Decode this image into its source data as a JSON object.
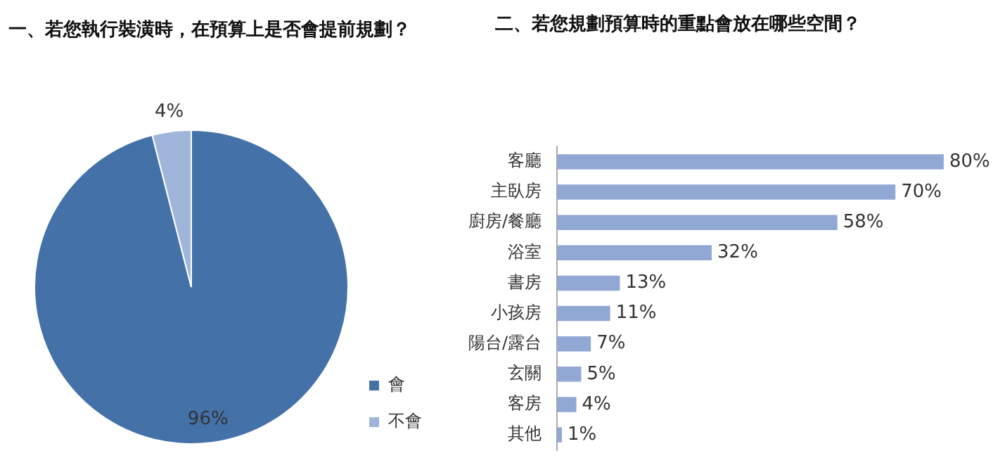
{
  "chart_data": [
    {
      "type": "pie",
      "title": "一、若您執行裝潢時，在預算上是否會提前規劃？",
      "categories": [
        "會",
        "不會"
      ],
      "values": [
        96,
        4
      ],
      "colors": [
        "#4571a9",
        "#9fb5d9"
      ],
      "value_labels": [
        "96%",
        "4%"
      ],
      "legend": "bottom right"
    },
    {
      "type": "bar",
      "orientation": "horizontal",
      "title": "二、若您規劃預算時的重點會放在哪些空間？",
      "categories": [
        "客廳",
        "主臥房",
        "廚房/餐廳",
        "浴室",
        "書房",
        "小孩房",
        "陽台/露台",
        "玄關",
        "客房",
        "其他"
      ],
      "values": [
        80,
        70,
        58,
        32,
        13,
        11,
        7,
        5,
        4,
        1
      ],
      "color": "#91a8d4",
      "value_labels": [
        "80%",
        "70%",
        "58%",
        "32%",
        "13%",
        "11%",
        "7%",
        "5%",
        "4%",
        "1%"
      ],
      "legend": false
    }
  ]
}
